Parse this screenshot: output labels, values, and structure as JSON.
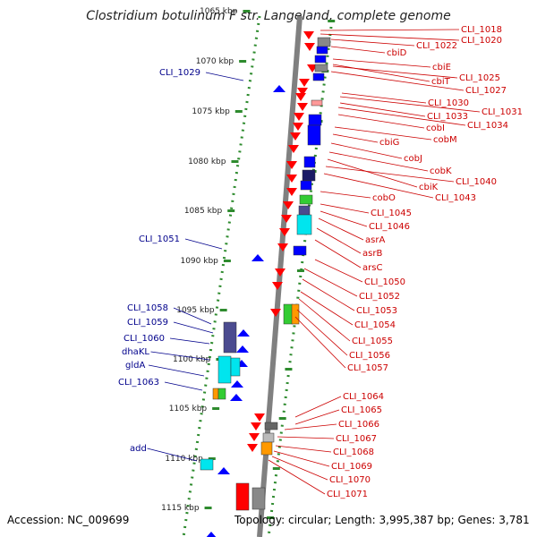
{
  "title": "Clostridium botulinum F str. Langeland, complete genome",
  "footer": {
    "accession": "Accession: NC_009699",
    "summary": "Topology: circular; Length: 3,995,387 bp; Genes: 3,781"
  },
  "ticks": [
    "1065 kbp",
    "1070 kbp",
    "1075 kbp",
    "1080 kbp",
    "1085 kbp",
    "1090 kbp",
    "1095 kbp",
    "1100 kbp",
    "1105 kbp",
    "1110 kbp",
    "1115 kbp"
  ],
  "left_genes": [
    "CLI_1029",
    "CLI_1051",
    "CLI_1058",
    "CLI_1059",
    "CLI_1060",
    "dhaKL",
    "gldA",
    "CLI_1063",
    "add"
  ],
  "right_genes": [
    "CLI_1018",
    "CLI_1020",
    "CLI_1022",
    "cbiD",
    "cbiE",
    "cbiT",
    "CLI_1025",
    "CLI_1027",
    "CLI_1030",
    "CLI_1031",
    "CLI_1033",
    "CLI_1034",
    "cobI",
    "cobM",
    "cbiG",
    "cobJ",
    "cobK",
    "cbiK",
    "CLI_1040",
    "CLI_1043",
    "cobO",
    "CLI_1045",
    "CLI_1046",
    "asrA",
    "asrB",
    "arsC",
    "CLI_1050",
    "CLI_1052",
    "CLI_1053",
    "CLI_1054",
    "CLI_1055",
    "CLI_1056",
    "CLI_1057",
    "CLI_1064",
    "CLI_1065",
    "CLI_1066",
    "CLI_1067",
    "CLI_1068",
    "CLI_1069",
    "CLI_1070",
    "CLI_1071"
  ],
  "colors": {
    "forward_strand": "#ff0000",
    "reverse_strand": "#0000ff",
    "backbone": "#808080",
    "tick": "#2e8b2e",
    "left_label": "#00008b",
    "right_label": "#cc0000",
    "rna_cyan": "#00e5ee",
    "green": "#33cc33",
    "orange": "#ff9900",
    "navy": "#1a1a66",
    "slate": "#4b4b8f",
    "grey": "#888888",
    "pink": "#ff9999"
  }
}
